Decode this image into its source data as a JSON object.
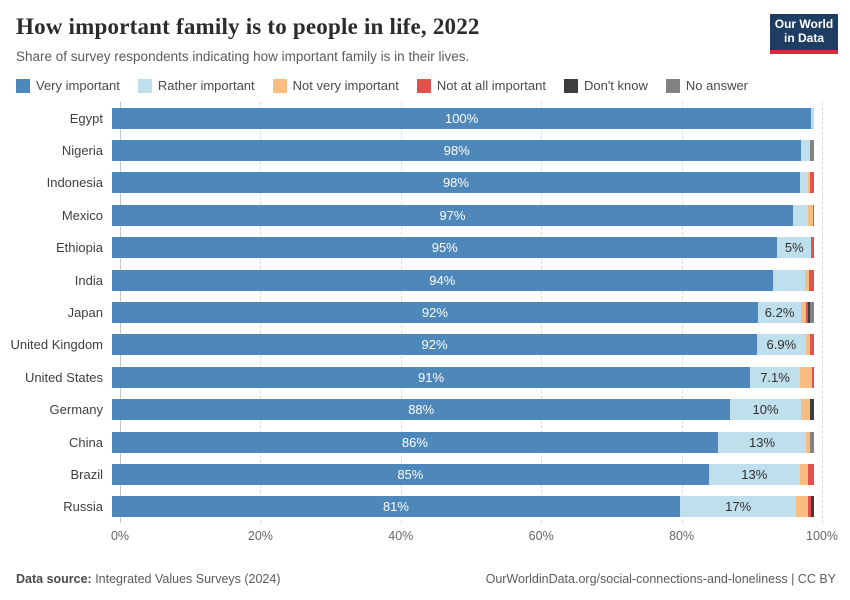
{
  "header": {
    "title": "How important family is to people in life, 2022",
    "subtitle": "Share of survey respondents indicating how important family is in their lives.",
    "logo_line1": "Our World",
    "logo_line2": "in Data",
    "logo_bg": "#1d3d63",
    "logo_stripe": "#e0273a"
  },
  "legend": [
    {
      "label": "Very important",
      "color": "#4e87b9"
    },
    {
      "label": "Rather important",
      "color": "#bedfeb"
    },
    {
      "label": "Not very important",
      "color": "#f9bd82"
    },
    {
      "label": "Not at all important",
      "color": "#e0524b"
    },
    {
      "label": "Don't know",
      "color": "#3d3d3d"
    },
    {
      "label": "No answer",
      "color": "#828282"
    }
  ],
  "chart_data": {
    "type": "bar",
    "stacked": true,
    "orientation": "horizontal",
    "unit": "%",
    "xlim": [
      0,
      100
    ],
    "x_ticks": [
      "0%",
      "20%",
      "40%",
      "60%",
      "80%",
      "100%"
    ],
    "x_tick_positions": [
      0,
      20,
      40,
      60,
      80,
      100
    ],
    "grid": true,
    "series_keys": [
      "very",
      "rather",
      "not_very",
      "not_at_all",
      "dont_know",
      "no_answer"
    ],
    "series_names": [
      "Very important",
      "Rather important",
      "Not very important",
      "Not at all important",
      "Don't know",
      "No answer"
    ],
    "series_colors": [
      "#4e87b9",
      "#bedfeb",
      "#f9bd82",
      "#e0524b",
      "#3d3d3d",
      "#828282"
    ],
    "countries": [
      {
        "name": "Egypt",
        "values": {
          "very": 99.6,
          "rather": 0.4,
          "not_very": 0,
          "not_at_all": 0,
          "dont_know": 0,
          "no_answer": 0
        },
        "very_label": "100%",
        "rather_label": ""
      },
      {
        "name": "Nigeria",
        "values": {
          "very": 98.2,
          "rather": 1.3,
          "not_very": 0,
          "not_at_all": 0,
          "dont_know": 0,
          "no_answer": 0.5
        },
        "very_label": "98%",
        "rather_label": ""
      },
      {
        "name": "Indonesia",
        "values": {
          "very": 98.0,
          "rather": 1.2,
          "not_very": 0.3,
          "not_at_all": 0.5,
          "dont_know": 0,
          "no_answer": 0
        },
        "very_label": "98%",
        "rather_label": ""
      },
      {
        "name": "Mexico",
        "values": {
          "very": 97.0,
          "rather": 2.2,
          "not_very": 0.6,
          "not_at_all": 0.2,
          "dont_know": 0,
          "no_answer": 0
        },
        "very_label": "97%",
        "rather_label": ""
      },
      {
        "name": "Ethiopia",
        "values": {
          "very": 94.8,
          "rather": 4.8,
          "not_very": 0,
          "not_at_all": 0.4,
          "dont_know": 0,
          "no_answer": 0
        },
        "very_label": "95%",
        "rather_label": "5%"
      },
      {
        "name": "India",
        "values": {
          "very": 94.1,
          "rather": 4.6,
          "not_very": 0.6,
          "not_at_all": 0.7,
          "dont_know": 0,
          "no_answer": 0
        },
        "very_label": "94%",
        "rather_label": ""
      },
      {
        "name": "Japan",
        "values": {
          "very": 92.0,
          "rather": 6.2,
          "not_very": 0.7,
          "not_at_all": 0.2,
          "dont_know": 0.4,
          "no_answer": 0.5
        },
        "very_label": "92%",
        "rather_label": "6.2%"
      },
      {
        "name": "United Kingdom",
        "values": {
          "very": 91.9,
          "rather": 6.9,
          "not_very": 0.7,
          "not_at_all": 0.5,
          "dont_know": 0,
          "no_answer": 0
        },
        "very_label": "92%",
        "rather_label": "6.9%"
      },
      {
        "name": "United States",
        "values": {
          "very": 90.9,
          "rather": 7.1,
          "not_very": 1.7,
          "not_at_all": 0.3,
          "dont_know": 0,
          "no_answer": 0
        },
        "very_label": "91%",
        "rather_label": "7.1%"
      },
      {
        "name": "Germany",
        "values": {
          "very": 88.1,
          "rather": 10.0,
          "not_very": 1.3,
          "not_at_all": 0,
          "dont_know": 0.6,
          "no_answer": 0
        },
        "very_label": "88%",
        "rather_label": "10%"
      },
      {
        "name": "China",
        "values": {
          "very": 86.3,
          "rather": 12.6,
          "not_very": 0.6,
          "not_at_all": 0,
          "dont_know": 0,
          "no_answer": 0.5
        },
        "very_label": "86%",
        "rather_label": "13%"
      },
      {
        "name": "Brazil",
        "values": {
          "very": 85.0,
          "rather": 13.0,
          "not_very": 1.2,
          "not_at_all": 0.8,
          "dont_know": 0,
          "no_answer": 0
        },
        "very_label": "85%",
        "rather_label": "13%"
      },
      {
        "name": "Russia",
        "values": {
          "very": 80.9,
          "rather": 16.6,
          "not_very": 1.6,
          "not_at_all": 0.5,
          "dont_know": 0.4,
          "no_answer": 0
        },
        "very_label": "81%",
        "rather_label": "17%"
      }
    ]
  },
  "footer": {
    "source_label": "Data source:",
    "source_text": " Integrated Values Surveys (2024)",
    "credit": "OurWorldinData.org/social-connections-and-loneliness | CC BY"
  }
}
